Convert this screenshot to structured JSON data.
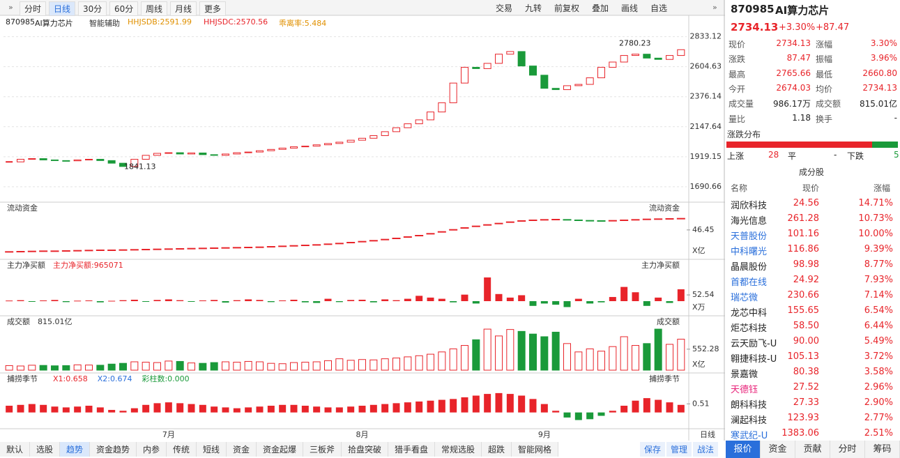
{
  "toolbar": {
    "left": [
      "分时",
      "日线",
      "30分",
      "60分",
      "周线",
      "月线",
      "更多"
    ],
    "right": [
      "交易",
      "九转",
      "前复权",
      "叠加",
      "画线",
      "自选"
    ]
  },
  "info": {
    "code": "870985",
    "name": "AI算力芯片",
    "assist": "智能辅助",
    "indicators": [
      "HHJSDB:2591.99",
      "HHJSDC:2570.56",
      "乖离率:5.484"
    ]
  },
  "chart_data": {
    "type": "candlestick",
    "categories": [
      null,
      null,
      null,
      null,
      null,
      null,
      null,
      null,
      null,
      null,
      null,
      null,
      null,
      null,
      "7月",
      null,
      null,
      null,
      null,
      null,
      null,
      null,
      null,
      null,
      null,
      null,
      null,
      null,
      null,
      null,
      null,
      "8月",
      null,
      null,
      null,
      null,
      null,
      null,
      null,
      null,
      null,
      null,
      null,
      null,
      null,
      null,
      null,
      "9月",
      null,
      null,
      null,
      null,
      null,
      null,
      null,
      null,
      null,
      null,
      null,
      null
    ],
    "values": [
      1880,
      1900,
      1905,
      1895,
      1890,
      1888,
      1895,
      1900,
      1890,
      1870,
      1845,
      1900,
      1930,
      1945,
      1950,
      1940,
      1948,
      1935,
      1930,
      1940,
      1950,
      1955,
      1965,
      1975,
      1985,
      1995,
      2000,
      2010,
      2020,
      2030,
      2045,
      2060,
      2080,
      2110,
      2140,
      2170,
      2200,
      2260,
      2330,
      2480,
      2600,
      2590,
      2630,
      2700,
      2720,
      2610,
      2540,
      2440,
      2430,
      2460,
      2470,
      2520,
      2600,
      2640,
      2690,
      2700,
      2670,
      2660,
      2690,
      2734.13
    ],
    "ylim": [
      1600,
      2900
    ],
    "yticks": [
      1690.66,
      1919.15,
      2147.64,
      2376.14,
      2604.63,
      2833.12
    ],
    "annotations": [
      2780.23,
      1841.13
    ],
    "up_color": "#e8242a",
    "down_color": "#1a9a3a",
    "grid": true,
    "period_label": "日线"
  },
  "panels": [
    {
      "type": "dash",
      "title": "流动资金",
      "unit": "X亿",
      "ylim": [
        35,
        53
      ],
      "yticks": [
        46.45
      ],
      "values": [
        37,
        37.1,
        37.2,
        37.3,
        37.3,
        37.4,
        37.5,
        37.6,
        37.7,
        37.7,
        37.8,
        37.9,
        38,
        38.1,
        38.2,
        38.3,
        38.4,
        38.5,
        38.6,
        38.7,
        38.8,
        38.9,
        39,
        39.2,
        39.4,
        39.6,
        39.8,
        40,
        40.3,
        40.6,
        41,
        41.4,
        41.8,
        42.3,
        42.8,
        43.4,
        44,
        44.8,
        45.6,
        46.5,
        47.3,
        48,
        48.6,
        49.2,
        49.8,
        50.3,
        50.6,
        50.8,
        50.9,
        50.8,
        50.6,
        50.4,
        50.3,
        50.4,
        50.6,
        50.8,
        51,
        51.1,
        51.2,
        51.3
      ]
    },
    {
      "type": "bar",
      "title": "主力净买额",
      "readouts": [
        "主力净买额:965071"
      ],
      "unit": "X万",
      "ylim": [
        -100,
        247
      ],
      "yticks": [
        52.54
      ],
      "values": [
        5,
        8,
        -5,
        6,
        10,
        -8,
        4,
        6,
        -10,
        3,
        8,
        12,
        -6,
        10,
        15,
        8,
        -4,
        6,
        10,
        -12,
        8,
        15,
        10,
        -8,
        6,
        12,
        -10,
        -15,
        20,
        -8,
        10,
        12,
        -10,
        15,
        8,
        20,
        45,
        30,
        20,
        -10,
        55,
        -20,
        200,
        60,
        30,
        50,
        -40,
        -20,
        -30,
        -50,
        20,
        -20,
        -10,
        35,
        120,
        75,
        -40,
        30,
        -15,
        100
      ]
    },
    {
      "type": "volume",
      "title": "成交额",
      "readouts": [
        "815.01亿"
      ],
      "unit": "X亿",
      "ylim": [
        0,
        1100
      ],
      "yticks": [
        552.28
      ],
      "values": [
        120,
        110,
        130,
        125,
        115,
        120,
        140,
        135,
        130,
        160,
        180,
        220,
        210,
        200,
        240,
        230,
        190,
        180,
        200,
        220,
        210,
        230,
        220,
        180,
        170,
        200,
        210,
        220,
        250,
        300,
        260,
        280,
        270,
        300,
        320,
        350,
        380,
        420,
        480,
        560,
        650,
        800,
        1080,
        900,
        1070,
        1020,
        950,
        880,
        1000,
        700,
        480,
        560,
        500,
        620,
        880,
        650,
        700,
        1080,
        680,
        815.01
      ]
    },
    {
      "type": "bar",
      "title": "捕捞季节",
      "readouts": [
        "X1:0.658",
        "X2:0.674",
        "彩柱数:0.000"
      ],
      "ylim": [
        -0.8,
        1.6
      ],
      "yticks": [
        0.51
      ],
      "values": [
        0.4,
        0.45,
        0.5,
        0.45,
        0.35,
        0.3,
        0.35,
        0.4,
        0.3,
        0.15,
        0.1,
        0.25,
        0.45,
        0.55,
        0.6,
        0.55,
        0.5,
        0.45,
        0.35,
        0.3,
        0.25,
        0.3,
        0.35,
        0.4,
        0.45,
        0.45,
        0.4,
        0.35,
        0.3,
        0.3,
        0.35,
        0.4,
        0.45,
        0.5,
        0.55,
        0.6,
        0.65,
        0.7,
        0.75,
        0.8,
        0.9,
        1.0,
        1.1,
        1.15,
        1.1,
        1.0,
        0.8,
        0.5,
        0.1,
        -0.3,
        -0.45,
        -0.4,
        -0.2,
        0.1,
        0.4,
        0.7,
        0.85,
        0.75,
        0.6,
        0.45
      ]
    }
  ],
  "bottom_tabs": {
    "left": [
      "默认",
      "选股",
      "趋势",
      "资金趋势",
      "内参",
      "传统",
      "短线",
      "资金",
      "资金起爆",
      "三板斧",
      "拾盘突破",
      "猎手看盘",
      "常规选股",
      "超跌",
      "智能网格"
    ],
    "right": [
      "保存",
      "管理",
      "战法"
    ]
  },
  "quote": {
    "code": "870985",
    "name": "AI算力芯片",
    "price": "2734.13",
    "change_pct": "+3.30%",
    "change": "+87.47",
    "rows": [
      [
        "现价",
        "2734.13",
        "涨幅",
        "3.30%"
      ],
      [
        "涨跌",
        "87.47",
        "振幅",
        "3.96%"
      ],
      [
        "最高",
        "2765.66",
        "最低",
        "2660.80"
      ],
      [
        "今开",
        "2674.03",
        "均价",
        "2734.13"
      ],
      [
        "成交量",
        "986.17万",
        "成交额",
        "815.01亿"
      ],
      [
        "量比",
        "1.18",
        "换手",
        "-"
      ]
    ],
    "distribution": {
      "title": "涨跌分布",
      "up_label": "上涨",
      "up": 28,
      "flat_label": "平",
      "flat": "-",
      "down_label": "下跌",
      "down": 5
    },
    "constituents": {
      "title": "成分股",
      "header": [
        "名称",
        "现价",
        "涨幅"
      ],
      "rows": [
        {
          "name": "润欣科技",
          "price": "24.56",
          "pct": "14.71%",
          "color": "#222"
        },
        {
          "name": "海光信息",
          "price": "261.28",
          "pct": "10.73%",
          "color": "#222"
        },
        {
          "name": "天普股份",
          "price": "101.16",
          "pct": "10.00%",
          "color": "#2a6fdb"
        },
        {
          "name": "中科曙光",
          "price": "116.86",
          "pct": "9.39%",
          "color": "#2a6fdb"
        },
        {
          "name": "晶晨股份",
          "price": "98.98",
          "pct": "8.77%",
          "color": "#222"
        },
        {
          "name": "首都在线",
          "price": "24.92",
          "pct": "7.93%",
          "color": "#2a6fdb"
        },
        {
          "name": "瑞芯微",
          "price": "230.66",
          "pct": "7.14%",
          "color": "#2a6fdb"
        },
        {
          "name": "龙芯中科",
          "price": "155.65",
          "pct": "6.54%",
          "color": "#222"
        },
        {
          "name": "炬芯科技",
          "price": "58.50",
          "pct": "6.44%",
          "color": "#222"
        },
        {
          "name": "云天励飞-U",
          "price": "90.00",
          "pct": "5.49%",
          "color": "#222"
        },
        {
          "name": "翱捷科技-U",
          "price": "105.13",
          "pct": "3.72%",
          "color": "#222"
        },
        {
          "name": "景嘉微",
          "price": "80.38",
          "pct": "3.58%",
          "color": "#222"
        },
        {
          "name": "天德钰",
          "price": "27.52",
          "pct": "2.96%",
          "color": "#e8247a"
        },
        {
          "name": "朗科科技",
          "price": "27.33",
          "pct": "2.90%",
          "color": "#222"
        },
        {
          "name": "澜起科技",
          "price": "123.93",
          "pct": "2.77%",
          "color": "#222"
        },
        {
          "name": "寒武纪-U",
          "price": "1383.06",
          "pct": "2.51%",
          "color": "#2a6fdb"
        }
      ]
    },
    "tabs": [
      "报价",
      "资金",
      "贡献",
      "分时",
      "筹码"
    ]
  }
}
